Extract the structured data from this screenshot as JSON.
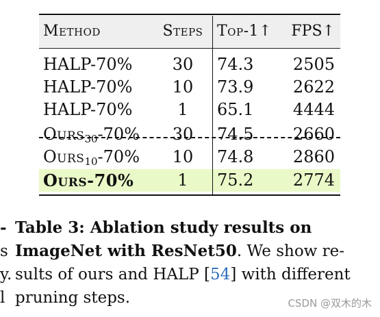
{
  "table": {
    "headers": {
      "method": "Method",
      "steps": "Steps",
      "top1": "Top-1↑",
      "fps": "FPS↑"
    },
    "rows": [
      {
        "method": "HALP-70%",
        "steps": "30",
        "top1": "74.3",
        "fps": "2505"
      },
      {
        "method": "HALP-70%",
        "steps": "10",
        "top1": "73.9",
        "fps": "2622"
      },
      {
        "method": "HALP-70%",
        "steps": "1",
        "top1": "65.1",
        "fps": "4444"
      },
      {
        "method_base": "Ours",
        "method_sub": "30",
        "method_suffix": "-70%",
        "steps": "30",
        "top1": "74.5",
        "fps": "2660"
      },
      {
        "method_base": "Ours",
        "method_sub": "10",
        "method_suffix": "-70%",
        "steps": "10",
        "top1": "74.8",
        "fps": "2860"
      },
      {
        "method": "Ours-70%",
        "steps": "1",
        "top1": "75.2",
        "fps": "2774",
        "highlight_color": "#eaf9c8"
      }
    ]
  },
  "caption": {
    "left_edge": [
      "-",
      "s",
      "y.",
      "l"
    ],
    "line1": "Table 3: Ablation study results on",
    "line2_bold": "ImageNet with ResNet50",
    "line2_rest": ". We show re-",
    "line3_a": "sults of ours and HALP [",
    "line3_ref": "54",
    "line3_b": "] with different",
    "line4": "pruning steps."
  },
  "watermark": "CSDN @双木的木"
}
